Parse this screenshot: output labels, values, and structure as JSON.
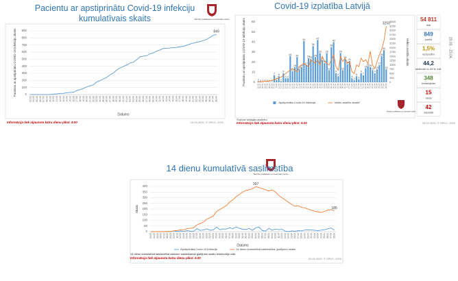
{
  "chart_data": [
    {
      "type": "line",
      "title": "Pacientu ar apstiprinātu Covid-19 infekciju kumulatīvais skaits",
      "x_label": "Datums",
      "y_label": "Pacientu ar apstiprinātu COVID-19 infekciju skaits",
      "categories": [
        "03.03",
        "04.03",
        "05.03",
        "06.03",
        "07.03",
        "08.03",
        "09.03",
        "10.03",
        "11.03",
        "12.03",
        "13.03",
        "14.03",
        "15.03",
        "16.03",
        "17.03",
        "18.03",
        "19.03",
        "20.03",
        "21.03",
        "22.03",
        "23.03",
        "24.03",
        "25.03",
        "26.03",
        "27.03",
        "28.03",
        "29.03",
        "30.03",
        "31.03",
        "01.04",
        "02.04",
        "03.04",
        "04.04",
        "05.04",
        "06.04",
        "07.04",
        "08.04",
        "09.04",
        "10.04",
        "11.04",
        "12.04",
        "13.04",
        "14.04",
        "15.04",
        "16.04",
        "17.04",
        "18.04",
        "19.04",
        "20.04",
        "21.04",
        "22.04",
        "23.04",
        "24.04",
        "25.04",
        "26.04",
        "27.04",
        "28.04"
      ],
      "values": [
        1,
        1,
        1,
        1,
        1,
        1,
        1,
        8,
        10,
        16,
        17,
        26,
        30,
        34,
        60,
        71,
        86,
        111,
        124,
        139,
        180,
        197,
        221,
        244,
        280,
        305,
        347,
        376,
        398,
        417,
        446,
        458,
        493,
        533,
        542,
        548,
        577,
        589,
        612,
        630,
        651,
        655,
        657,
        663,
        666,
        675,
        682,
        696,
        712,
        727,
        739,
        748,
        761,
        778,
        804,
        836,
        849
      ],
      "color": "#5b9bd5",
      "ylim": [
        0,
        900
      ],
      "yticks": [
        0,
        100,
        200,
        300,
        400,
        500,
        600,
        700,
        800,
        900
      ],
      "grid": true,
      "footnote": "Informācija tiek atjaunota katru dienu plkst. 9.00",
      "source": "29.04.2020, © SPKC, 2020",
      "logo_text": "Slimību profilakses un kontroles centrs"
    },
    {
      "type": "bar-line",
      "title": "Covid-19 izplatība Latvijā",
      "y_label": "Pacientu ar apstiprinātu COVID-19 infekciju skaits",
      "y2_label": "Veikto analīžu skaits",
      "categories": [
        "03.03",
        "04.03",
        "05.03",
        "06.03",
        "07.03",
        "08.03",
        "09.03",
        "10.03",
        "11.03",
        "12.03",
        "13.03",
        "14.03",
        "15.03",
        "16.03",
        "17.03",
        "18.03",
        "19.03",
        "20.03",
        "21.03",
        "22.03",
        "23.03",
        "24.03",
        "25.03",
        "26.03",
        "27.03",
        "28.03",
        "29.03",
        "30.03",
        "31.03",
        "01.04",
        "02.04",
        "03.04",
        "04.04",
        "05.04",
        "06.04",
        "07.04",
        "08.04",
        "09.04",
        "10.04",
        "11.04",
        "12.04",
        "13.04",
        "14.04",
        "15.04",
        "16.04",
        "17.04",
        "18.04",
        "19.04",
        "20.04",
        "21.04",
        "22.04",
        "23.04",
        "24.04",
        "25.04",
        "26.04",
        "27.04",
        "28.04"
      ],
      "series": [
        {
          "name": "Apstiprināta Covid-19 infekcija",
          "color": "#5b9bd5",
          "values": [
            1,
            0,
            0,
            0,
            0,
            0,
            0,
            7,
            2,
            6,
            1,
            9,
            4,
            4,
            26,
            11,
            15,
            25,
            13,
            15,
            41,
            17,
            24,
            23,
            36,
            25,
            42,
            29,
            22,
            19,
            29,
            12,
            35,
            40,
            9,
            6,
            29,
            12,
            23,
            18,
            21,
            4,
            2,
            6,
            3,
            9,
            7,
            14,
            16,
            15,
            12,
            9,
            13,
            17,
            26,
            32,
            13
          ]
        },
        {
          "name": "Veikto analīžu skaits*",
          "color": "#ed7d31",
          "axis": "y2",
          "values": [
            20,
            30,
            40,
            60,
            50,
            80,
            100,
            150,
            200,
            250,
            300,
            400,
            500,
            600,
            700,
            800,
            700,
            600,
            900,
            1000,
            1100,
            1000,
            900,
            1300,
            1200,
            1100,
            1300,
            1000,
            1500,
            1200,
            1100,
            1000,
            1300,
            1600,
            900,
            700,
            1500,
            1200,
            1400,
            1100,
            1200,
            600,
            500,
            1000,
            900,
            1400,
            1200,
            1300,
            1100,
            1800,
            1000,
            800,
            1200,
            1600,
            1900,
            2400,
            3250
          ]
        }
      ],
      "ylim": [
        0,
        60
      ],
      "yticks": [
        0,
        10,
        20,
        30,
        40,
        50,
        60
      ],
      "y2lim": [
        0,
        3500
      ],
      "y2ticks": [
        0,
        250,
        500,
        750,
        1000,
        1250,
        1500,
        1750,
        2000,
        2250,
        2500,
        2750,
        3000,
        3250,
        3500
      ],
      "grid": false,
      "stats": [
        {
          "value": "54 811",
          "label": "testi",
          "color": "#c0392b"
        },
        {
          "value": "849",
          "label": "pozitīvi",
          "color": "#2e75b6"
        },
        {
          "value": "1,5%",
          "label": "testi pozitīvi",
          "color": "#bf9000"
        },
        {
          "value": "44,2",
          "label": "saslimušie uz 100 tk. iedz.",
          "color": "#203864"
        },
        {
          "value": "348",
          "label": "izveseļojušies",
          "color": "#548235"
        },
        {
          "value": "15",
          "label": "miruši",
          "color": "#c00000"
        },
        {
          "value": "42",
          "label": "stacionēti",
          "color": "#c00000"
        }
      ],
      "period": "23.03. - 23.04.",
      "note": "*Dati par veiktajām analīzēm",
      "footnote": "Informācija tiek atjaunota katru dienu plkst. 9.00",
      "source": "29.04.2020, © SPKC, 2020",
      "logo_text": "Slimību profilakses un kontroles centrs"
    },
    {
      "type": "line",
      "title": "14 dienu kumulatīvā saslimstība",
      "x_label": "Datums",
      "y_label": "Skaits",
      "categories": [
        "03.03",
        "04.03",
        "05.03",
        "06.03",
        "07.03",
        "08.03",
        "09.03",
        "10.03",
        "11.03",
        "12.03",
        "13.03",
        "14.03",
        "15.03",
        "16.03",
        "17.03",
        "18.03",
        "19.03",
        "20.03",
        "21.03",
        "22.03",
        "23.03",
        "24.03",
        "25.03",
        "26.03",
        "27.03",
        "28.03",
        "29.03",
        "30.03",
        "31.03",
        "01.04",
        "02.04",
        "03.04",
        "04.04",
        "05.04",
        "06.04",
        "07.04",
        "08.04",
        "09.04",
        "10.04",
        "11.04",
        "12.04",
        "13.04",
        "14.04",
        "15.04",
        "16.04",
        "17.04",
        "18.04",
        "19.04",
        "20.04",
        "21.04",
        "22.04",
        "23.04",
        "24.04",
        "25.04",
        "26.04",
        "27.04",
        "28.04"
      ],
      "series": [
        {
          "name": "Apstiprināta Covid-19 infekcija",
          "color": "#5b9bd5",
          "values": [
            1,
            0,
            0,
            0,
            0,
            0,
            0,
            7,
            2,
            6,
            1,
            9,
            4,
            4,
            26,
            11,
            15,
            25,
            13,
            15,
            41,
            17,
            24,
            23,
            36,
            25,
            42,
            29,
            22,
            19,
            29,
            12,
            35,
            40,
            9,
            6,
            29,
            12,
            23,
            18,
            21,
            4,
            2,
            6,
            3,
            9,
            7,
            14,
            16,
            15,
            12,
            9,
            13,
            17,
            26,
            32,
            13
          ]
        },
        {
          "name": "14 dienu kumulatīvā saslimstība, gadījumu skaits",
          "color": "#ed7d31",
          "values": [
            0,
            0,
            0,
            0,
            1,
            1,
            1,
            8,
            10,
            16,
            17,
            26,
            30,
            34,
            60,
            71,
            86,
            110,
            123,
            138,
            179,
            196,
            213,
            230,
            262,
            280,
            310,
            330,
            350,
            365,
            370,
            380,
            397,
            390,
            380,
            370,
            360,
            370,
            350,
            320,
            300,
            280,
            260,
            240,
            225,
            230,
            215,
            210,
            200,
            190,
            180,
            175,
            170,
            180,
            190,
            195,
            185
          ]
        }
      ],
      "ylim": [
        0,
        400
      ],
      "yticks": [
        0,
        50,
        100,
        150,
        200,
        250,
        300,
        350,
        400
      ],
      "grid": true,
      "note": "14 dienu kumulatīvā saslimstība raksturo saslimšanas gadījumu skaitu iedzīvotāju vidū",
      "footnote": "Informācija tiek atjaunota katru dienu plkst. 9.00",
      "source": "29.04.2020, © SPKC, 2020",
      "logo_text": "Slimību profilakses un kontroles centrs"
    }
  ]
}
